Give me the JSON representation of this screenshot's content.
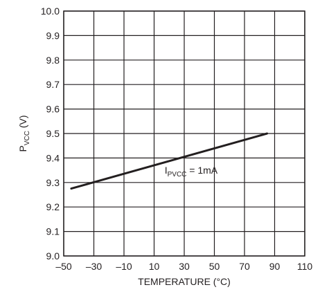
{
  "chart_data": {
    "type": "line",
    "xlabel": "TEMPERATURE (°C)",
    "ylabel": {
      "main": "P",
      "sub": "VCC",
      "suffix": " (V)"
    },
    "xlim": [
      -50,
      110
    ],
    "ylim": [
      9.0,
      10.0
    ],
    "xticks": [
      -50,
      -30,
      -10,
      10,
      30,
      50,
      70,
      90,
      110
    ],
    "xtick_labels": [
      "–50",
      "–30",
      "–10",
      "10",
      "30",
      "50",
      "70",
      "90",
      "110"
    ],
    "yticks": [
      9.0,
      9.1,
      9.2,
      9.3,
      9.4,
      9.5,
      9.6,
      9.7,
      9.8,
      9.9,
      10.0
    ],
    "ytick_labels": [
      "9.0",
      "9.1",
      "9.2",
      "9.3",
      "9.4",
      "9.5",
      "9.6",
      "9.7",
      "9.8",
      "9.9",
      "10.0"
    ],
    "grid": true,
    "series": [
      {
        "x": [
          -45,
          85
        ],
        "y": [
          9.275,
          9.5
        ],
        "color": "#231f20"
      }
    ],
    "annotations": [
      {
        "main": "I",
        "sub": "PVCC",
        "suffix": " = 1mA",
        "x": 17,
        "y": 9.35
      }
    ]
  }
}
